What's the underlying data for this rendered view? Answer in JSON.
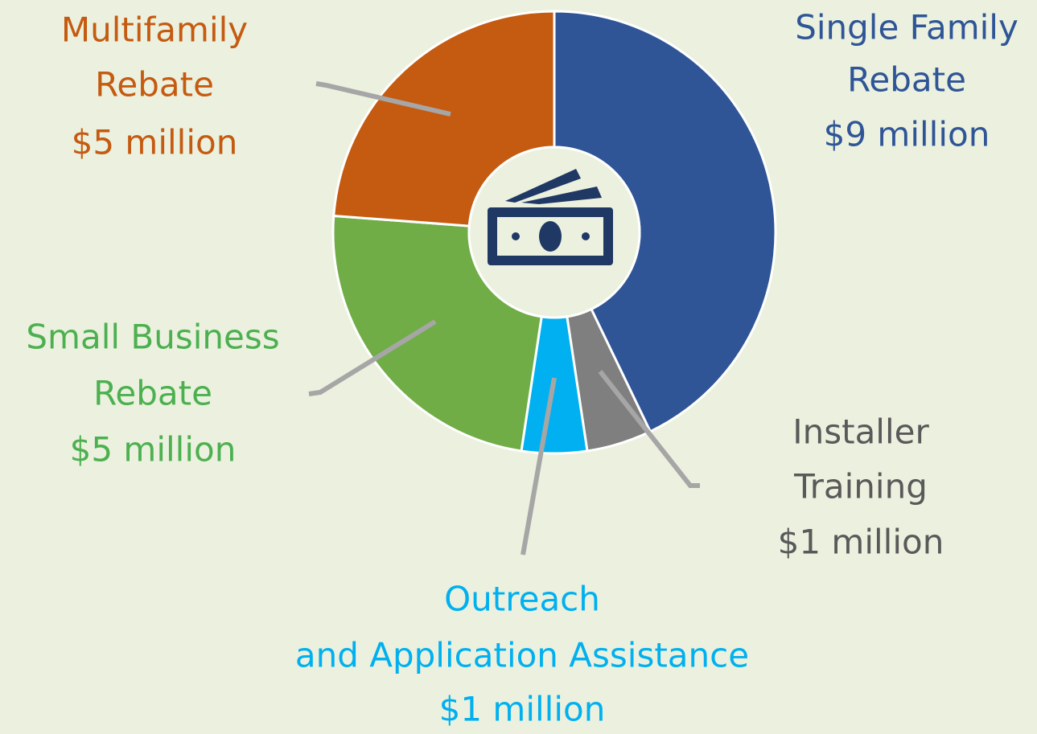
{
  "chart_data": {
    "type": "donut",
    "categories": [
      [
        "Single Family",
        "Rebate"
      ],
      [
        "Installer",
        "Training"
      ],
      [
        "Outreach",
        "and Application Assistance"
      ],
      [
        "Small Business",
        "Rebate"
      ],
      [
        "Multifamily",
        "Rebate"
      ]
    ],
    "values": [
      9,
      1,
      1,
      5,
      5
    ],
    "value_labels": [
      "$9 million",
      "$1 million",
      "$1 million",
      "$5 million",
      "$5 million"
    ],
    "colors": [
      "#2f5597",
      "#7f7f7f",
      "#00b0f0",
      "#70ad47",
      "#c55a11"
    ],
    "label_colors": [
      "#2f5597",
      "#595959",
      "#00b0f0",
      "#4cb050",
      "#c55a11"
    ]
  }
}
